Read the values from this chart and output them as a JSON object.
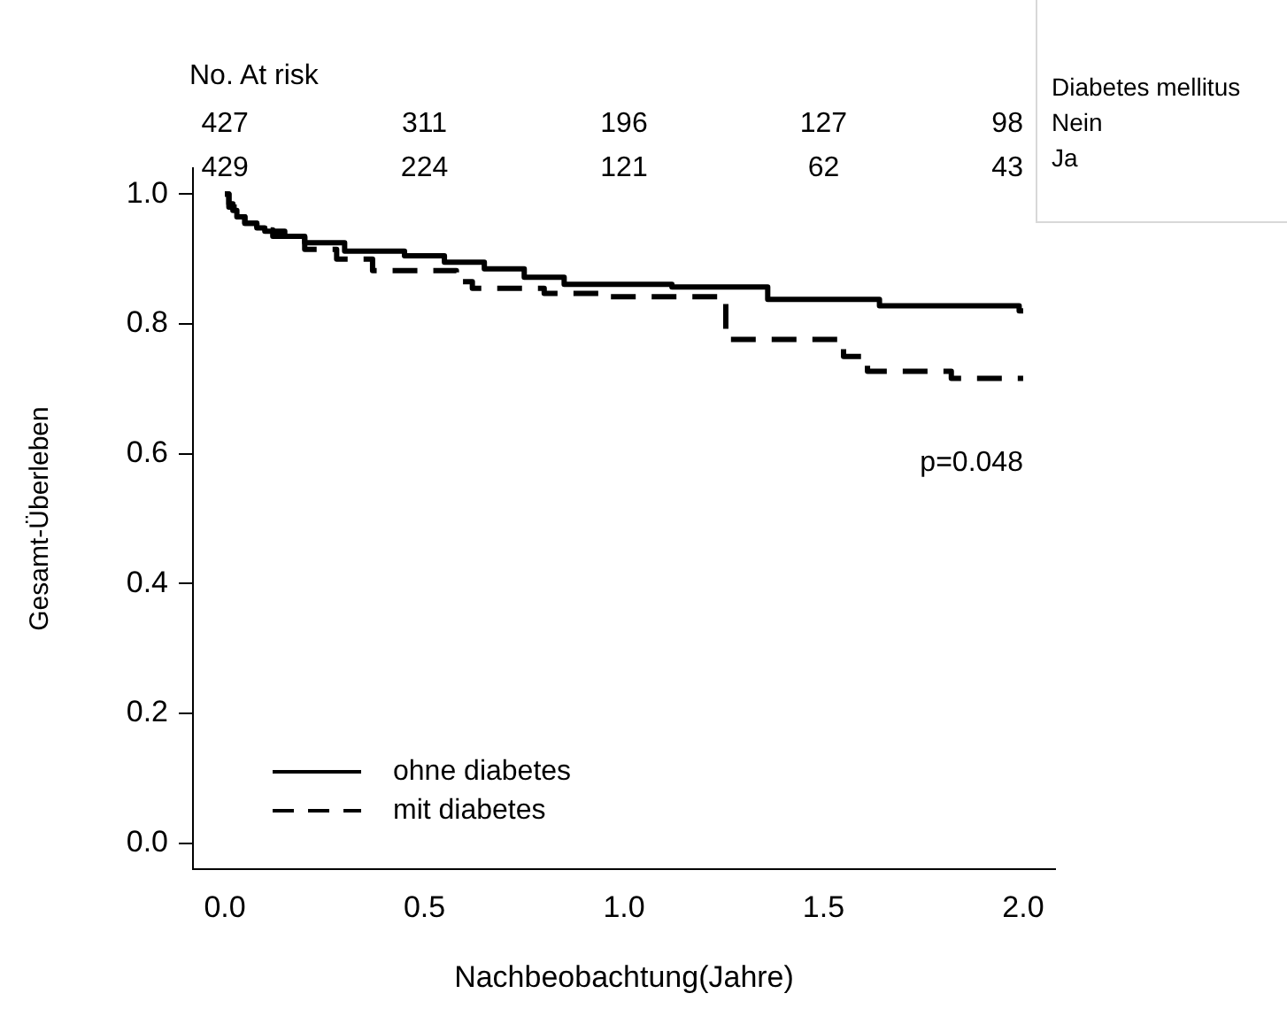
{
  "chart_data": {
    "type": "step",
    "xlabel": "Nachbeobachtung(Jahre)",
    "ylabel": "Gesamt-Überleben",
    "xlim": [
      -0.08,
      2.08
    ],
    "ylim": [
      -0.04,
      1.04
    ],
    "xticks": [
      {
        "value": 0,
        "label": "0.0"
      },
      {
        "value": 0.5,
        "label": "0.5"
      },
      {
        "value": 1,
        "label": "1.0"
      },
      {
        "value": 1.5,
        "label": "1.5"
      },
      {
        "value": 2,
        "label": "2.0"
      }
    ],
    "yticks": [
      {
        "value": 0,
        "label": "0.0"
      },
      {
        "value": 0.2,
        "label": "0.2"
      },
      {
        "value": 0.4,
        "label": "0.4"
      },
      {
        "value": 0.6,
        "label": "0.6"
      },
      {
        "value": 0.8,
        "label": "0.8"
      },
      {
        "value": 1,
        "label": "1.0"
      }
    ],
    "grid": false,
    "legend": "bottom left",
    "marker": "none",
    "series": [
      {
        "name": "ohne diabetes",
        "color": "#000000",
        "line_style": "solid",
        "x": [
          0,
          0.01,
          0.02,
          0.03,
          0.05,
          0.08,
          0.1,
          0.15,
          0.2,
          0.3,
          0.45,
          0.55,
          0.65,
          0.75,
          0.85,
          1.12,
          1.36,
          1.64,
          1.99,
          2.0
        ],
        "values": [
          1,
          0.985,
          0.975,
          0.965,
          0.955,
          0.948,
          0.943,
          0.935,
          0.925,
          0.912,
          0.905,
          0.895,
          0.885,
          0.872,
          0.861,
          0.857,
          0.838,
          0.828,
          0.82,
          0.82
        ]
      },
      {
        "name": "mit diabetes",
        "color": "#000000",
        "line_style": "dashed",
        "x": [
          0,
          0.01,
          0.03,
          0.05,
          0.08,
          0.12,
          0.2,
          0.28,
          0.37,
          0.58,
          0.62,
          0.8,
          0.94,
          1.255,
          1.55,
          1.61,
          1.82,
          2.0
        ],
        "values": [
          1,
          0.98,
          0.965,
          0.955,
          0.945,
          0.935,
          0.915,
          0.9,
          0.882,
          0.865,
          0.855,
          0.847,
          0.842,
          0.776,
          0.75,
          0.727,
          0.716,
          0.716
        ]
      }
    ],
    "annotations": [
      "No. At risk",
      "Diabetes mellitus",
      "Nein",
      "Ja",
      "427",
      "311",
      "196",
      "127",
      "98",
      "429",
      "224",
      "121",
      "62",
      "43",
      "p=0.048"
    ]
  }
}
